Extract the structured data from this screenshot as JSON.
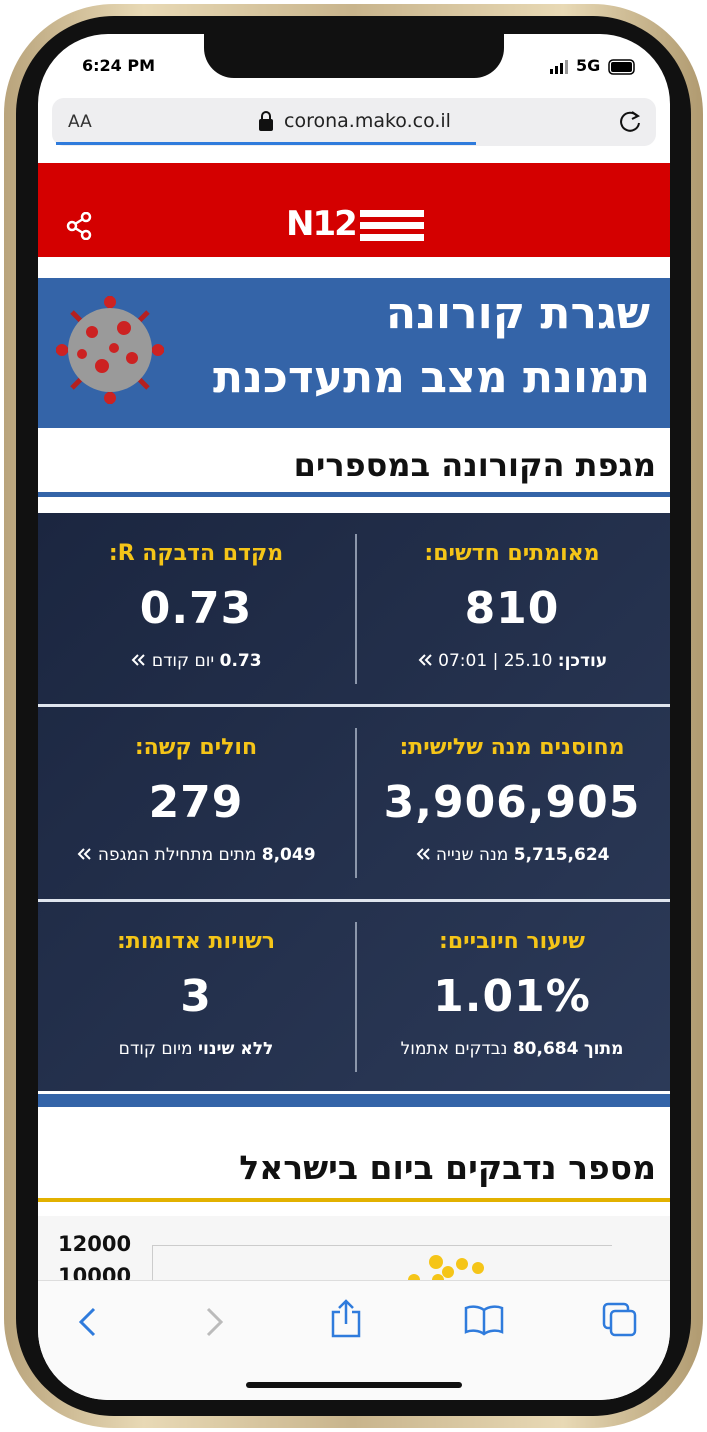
{
  "status_bar": {
    "time": "6:24 PM",
    "network": "5G"
  },
  "browser": {
    "text_size": "AA",
    "url": "corona.mako.co.il"
  },
  "header": {
    "logo": "N12"
  },
  "banner": {
    "line1": "שגרת קורונה",
    "line2": "תמונת מצב מתעדכנת"
  },
  "stats": {
    "title": "מגפת הקורונה במספרים",
    "cards": [
      {
        "label": "מאומתים חדשים:",
        "value": "810",
        "sub": [
          {
            "text": "עודכן:",
            "bold": true
          },
          {
            "text": "25.10 | 07:01"
          }
        ]
      },
      {
        "label": "מקדם הדבקה R:",
        "value": "0.73",
        "sub": [
          {
            "text": "0.73",
            "bold": true
          },
          {
            "text": "יום קודם"
          }
        ]
      },
      {
        "label": "מחוסנים מנה שלישית:",
        "value": "3,906,905",
        "sub": [
          {
            "text": "5,715,624",
            "bold": true
          },
          {
            "text": "מנה שנייה"
          }
        ]
      },
      {
        "label": "חולים קשה:",
        "value": "279",
        "sub": [
          {
            "text": "8,049",
            "bold": true
          },
          {
            "text": "מתים מתחילת המגפה"
          }
        ]
      },
      {
        "label": "שיעור חיוביים:",
        "value": "1.01%",
        "sub": [
          {
            "text": "מתוך",
            "bold": true
          },
          {
            "text": "80,684",
            "bold": true
          },
          {
            "text": "נבדקים אתמול"
          }
        ]
      },
      {
        "label": "רשויות אדומות:",
        "value": "3",
        "sub": [
          {
            "text": "ללא שינוי",
            "bold": true
          },
          {
            "text": "מיום קודם"
          }
        ]
      }
    ]
  },
  "daily_chart": {
    "title": "מספר נדבקים ביום בישראל",
    "yticks": [
      "12000",
      "10000"
    ]
  }
}
